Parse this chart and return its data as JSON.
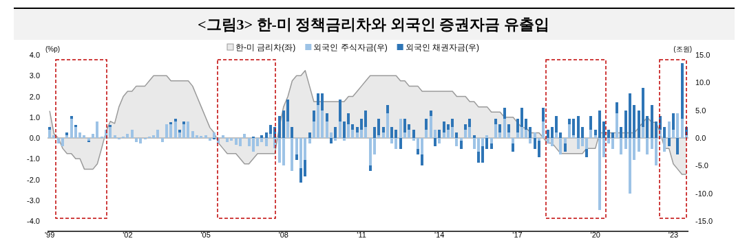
{
  "chart_data": {
    "type": "bar",
    "title": "<그림3> 한-미 정책금리차와 외국인 증권자금 유출입",
    "ylabel": "(%p)",
    "y2label": "(조원)",
    "legend": "top",
    "stacked": true,
    "x": [
      "1999-01",
      "1999-03",
      "1999-05",
      "1999-07",
      "1999-09",
      "1999-11",
      "2000-01",
      "2000-03",
      "2000-05",
      "2000-07",
      "2000-09",
      "2000-11",
      "2001-01",
      "2001-03",
      "2001-05",
      "2001-07",
      "2001-09",
      "2001-11",
      "2002-01",
      "2002-03",
      "2002-05",
      "2002-07",
      "2002-09",
      "2002-11",
      "2003-01",
      "2003-03",
      "2003-05",
      "2003-07",
      "2003-09",
      "2003-11",
      "2004-01",
      "2004-03",
      "2004-05",
      "2004-07",
      "2004-09",
      "2004-11",
      "2005-01",
      "2005-03",
      "2005-05",
      "2005-07",
      "2005-09",
      "2005-11",
      "2006-01",
      "2006-03",
      "2006-05",
      "2006-07",
      "2006-09",
      "2006-11",
      "2007-01",
      "2007-03",
      "2007-05",
      "2007-07",
      "2007-09",
      "2007-11",
      "2008-01",
      "2008-03",
      "2008-05",
      "2008-07",
      "2008-09",
      "2008-11",
      "2009-01",
      "2009-03",
      "2009-05",
      "2009-07",
      "2009-09",
      "2009-11",
      "2010-01",
      "2010-03",
      "2010-05",
      "2010-07",
      "2010-09",
      "2010-11",
      "2011-01",
      "2011-03",
      "2011-05",
      "2011-07",
      "2011-09",
      "2011-11",
      "2012-01",
      "2012-03",
      "2012-05",
      "2012-07",
      "2012-09",
      "2012-11",
      "2013-01",
      "2013-03",
      "2013-05",
      "2013-07",
      "2013-09",
      "2013-11",
      "2014-01",
      "2014-03",
      "2014-05",
      "2014-07",
      "2014-09",
      "2014-11",
      "2015-01",
      "2015-03",
      "2015-05",
      "2015-07",
      "2015-09",
      "2015-11",
      "2016-01",
      "2016-03",
      "2016-05",
      "2016-07",
      "2016-09",
      "2016-11",
      "2017-01",
      "2017-03",
      "2017-05",
      "2017-07",
      "2017-09",
      "2017-11",
      "2018-01",
      "2018-03",
      "2018-05",
      "2018-07",
      "2018-09",
      "2018-11",
      "2019-01",
      "2019-03",
      "2019-05",
      "2019-07",
      "2019-09",
      "2019-11",
      "2020-01",
      "2020-03",
      "2020-05",
      "2020-07",
      "2020-09",
      "2020-11",
      "2021-01",
      "2021-03",
      "2021-05",
      "2021-07",
      "2021-09",
      "2021-11",
      "2022-01",
      "2022-03",
      "2022-05",
      "2022-07",
      "2022-09",
      "2022-11",
      "2023-01",
      "2023-03",
      "2023-05",
      "2023-07"
    ],
    "xlim": [
      "1998-12",
      "2023-08"
    ],
    "xticks": [
      {
        "value": "1999-01",
        "label": "'99"
      },
      {
        "value": "2002-01",
        "label": "'02"
      },
      {
        "value": "2005-01",
        "label": "'05"
      },
      {
        "value": "2008-01",
        "label": "'08"
      },
      {
        "value": "2011-01",
        "label": "'11"
      },
      {
        "value": "2014-01",
        "label": "'14"
      },
      {
        "value": "2017-01",
        "label": "'17"
      },
      {
        "value": "2020-01",
        "label": "'20"
      },
      {
        "value": "2023-01",
        "label": "'23"
      }
    ],
    "ylim": [
      -4,
      4
    ],
    "yticks": [
      {
        "value": -4,
        "label": "-4.0"
      },
      {
        "value": -3,
        "label": "-3.0"
      },
      {
        "value": -2,
        "label": "-2.0"
      },
      {
        "value": -1,
        "label": "-1.0"
      },
      {
        "value": 0,
        "label": "0.0"
      },
      {
        "value": 1,
        "label": "1.0"
      },
      {
        "value": 2,
        "label": "2.0"
      },
      {
        "value": 3,
        "label": "3.0"
      },
      {
        "value": 4,
        "label": "4.0"
      }
    ],
    "y2lim": [
      -15,
      15
    ],
    "y2ticks": [
      {
        "value": -15,
        "label": "-15.0"
      },
      {
        "value": -10,
        "label": "-10.0"
      },
      {
        "value": -5,
        "label": "-5.0"
      },
      {
        "value": 0,
        "label": "0.0"
      },
      {
        "value": 5,
        "label": "5.0"
      },
      {
        "value": 10,
        "label": "10.0"
      },
      {
        "value": 15,
        "label": "15.0"
      }
    ],
    "series": [
      {
        "name": "한-미 금리차(좌)",
        "type": "area",
        "axis": "y",
        "color": "#e9e9e9",
        "values": [
          1.3,
          0.2,
          0.0,
          -0.5,
          -0.75,
          -0.75,
          -1.0,
          -1.0,
          -1.5,
          -1.5,
          -1.5,
          -1.25,
          -0.5,
          0.3,
          0.8,
          0.7,
          1.5,
          2.0,
          2.25,
          2.25,
          2.5,
          2.5,
          2.5,
          2.75,
          3.0,
          3.0,
          3.0,
          3.0,
          2.75,
          2.75,
          2.75,
          2.75,
          2.75,
          2.5,
          2.0,
          1.5,
          1.0,
          0.5,
          0.25,
          -0.25,
          -0.5,
          -0.75,
          -0.75,
          -0.75,
          -1.0,
          -1.25,
          -1.25,
          -1.0,
          -0.75,
          -0.75,
          -0.75,
          -0.75,
          -0.75,
          0.5,
          1.5,
          2.0,
          2.75,
          3.0,
          3.0,
          3.25,
          2.5,
          1.75,
          1.75,
          1.75,
          1.75,
          1.75,
          1.75,
          1.75,
          1.75,
          2.0,
          2.0,
          2.25,
          2.5,
          2.75,
          3.0,
          3.0,
          3.0,
          3.0,
          3.0,
          3.0,
          3.0,
          2.75,
          2.75,
          2.5,
          2.5,
          2.5,
          2.25,
          2.25,
          2.25,
          2.25,
          2.25,
          2.25,
          2.25,
          2.25,
          2.0,
          2.0,
          2.0,
          1.75,
          1.75,
          1.5,
          1.5,
          1.5,
          1.25,
          1.25,
          1.25,
          1.0,
          1.0,
          1.0,
          0.75,
          0.5,
          0.5,
          0.25,
          0.25,
          0.25,
          0.0,
          -0.25,
          -0.25,
          -0.5,
          -0.75,
          -0.75,
          -0.75,
          -0.75,
          -0.75,
          -0.75,
          -0.5,
          -0.5,
          -0.5,
          0.25,
          0.25,
          0.25,
          0.25,
          0.25,
          0.25,
          0.25,
          0.25,
          0.25,
          0.5,
          0.75,
          1.0,
          0.75,
          0.75,
          0.25,
          -0.5,
          -0.5,
          -1.25,
          -1.5,
          -1.75,
          -1.75
        ]
      },
      {
        "name": "외국인 주식자금(우)",
        "axis": "y2",
        "color": "#9dc3e6",
        "values": [
          1.5,
          0.5,
          -1.0,
          -1.5,
          0.5,
          3.5,
          2.0,
          1.0,
          0.5,
          -0.5,
          0.8,
          3.0,
          0.3,
          1.5,
          2.0,
          0.5,
          -0.3,
          0.3,
          0.8,
          1.5,
          -0.8,
          -1.0,
          -0.3,
          0.2,
          0.5,
          1.5,
          -0.8,
          2.5,
          2.5,
          3.0,
          1.0,
          2.5,
          3.0,
          1.2,
          0.5,
          0.4,
          0.5,
          -0.5,
          1.0,
          -1.0,
          0.5,
          -0.8,
          -0.5,
          -1.2,
          -1.5,
          0.8,
          -1.5,
          -2.5,
          -1.5,
          -0.8,
          -1.5,
          0.8,
          -1.8,
          -4.5,
          -5.0,
          3.0,
          -6.0,
          -3.0,
          -5.5,
          -4.0,
          -1.0,
          3.0,
          6.0,
          5.0,
          3.0,
          1.0,
          -0.5,
          3.0,
          -0.5,
          2.5,
          1.5,
          1.0,
          1.5,
          2.0,
          -5.0,
          -3.0,
          0.5,
          1.0,
          4.5,
          -1.0,
          -2.0,
          3.5,
          1.0,
          1.5,
          -0.5,
          -2.0,
          -3.0,
          1.5,
          4.0,
          1.5,
          -1.0,
          1.0,
          1.5,
          2.0,
          -1.5,
          -0.5,
          1.5,
          2.0,
          -2.0,
          -2.5,
          -1.5,
          0.5,
          -1.0,
          2.5,
          1.0,
          3.5,
          1.0,
          -1.0,
          1.0,
          2.0,
          1.5,
          -1.0,
          1.0,
          -0.5,
          3.0,
          -1.0,
          -1.5,
          1.0,
          -3.0,
          -1.0,
          2.5,
          0.5,
          -2.0,
          -1.5,
          -2.0,
          1.5,
          0.5,
          -13.0,
          -3.5,
          -1.0,
          -2.0,
          4.5,
          -3.0,
          -2.0,
          -10.0,
          -4.0,
          -2.5,
          2.0,
          -3.0,
          -2.0,
          -5.0,
          1.5,
          -2.5,
          3.0,
          1.5,
          4.5,
          3.5,
          0.5
        ]
      },
      {
        "name": "외국인 채권자금(우)",
        "axis": "y2",
        "color": "#2e75b6",
        "values": [
          0.5,
          0,
          0,
          0,
          0.5,
          0.5,
          0.3,
          0,
          0,
          -0.3,
          0,
          0,
          0,
          0,
          0.3,
          0,
          0,
          0,
          0,
          0,
          0,
          0,
          0,
          0,
          0,
          0,
          0,
          0,
          0.3,
          0.5,
          0.5,
          0.5,
          0,
          0,
          0,
          0,
          0,
          0,
          -0.3,
          0,
          0,
          0,
          0,
          0,
          0,
          0,
          0,
          0.3,
          0,
          0.5,
          1.0,
          1.5,
          2.0,
          4.0,
          5.0,
          4.0,
          2.0,
          -1.0,
          -2.5,
          -3.0,
          1.0,
          2.0,
          2.0,
          3.0,
          1.5,
          -1.0,
          2.0,
          4.0,
          3.0,
          2.0,
          1.0,
          1.0,
          2.0,
          3.0,
          -1.0,
          2.0,
          3.0,
          1.0,
          1.5,
          2.0,
          1.5,
          -2.0,
          2.5,
          1.0,
          1.5,
          -1.0,
          -2.0,
          2.0,
          1.0,
          -1.5,
          1.5,
          2.0,
          1.0,
          1.5,
          1.0,
          -1.5,
          1.0,
          1.5,
          0.5,
          -2.0,
          -3.0,
          -2.0,
          -1.0,
          1.0,
          1.5,
          2.0,
          1.5,
          -1.5,
          2.5,
          3.5,
          2.0,
          2.0,
          -2.0,
          -3.0,
          2.5,
          1.5,
          2.0,
          3.0,
          1.0,
          -1.5,
          1.0,
          3.0,
          4.0,
          2.0,
          -1.5,
          2.5,
          1.0,
          5.0,
          3.0,
          1.5,
          1.0,
          2.0,
          2.0,
          5.0,
          8.0,
          6.0,
          5.0,
          7.0,
          4.0,
          6.0,
          3.0,
          2.5,
          2.0,
          -1.5,
          3.0,
          -3.0,
          10.0,
          1.5
        ]
      }
    ]
  }
}
